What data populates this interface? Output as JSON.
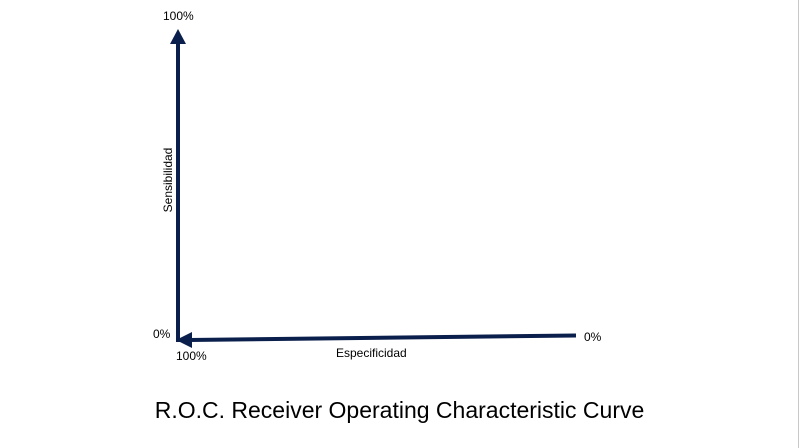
{
  "diagram": {
    "y_axis": {
      "label": "Sensibilidad",
      "top_value": "100%",
      "bottom_value": "0%"
    },
    "x_axis": {
      "label": "Especificidad",
      "left_value": "100%",
      "right_value": "0%"
    },
    "caption": "R.O.C.  Receiver Operating Characteristic Curve",
    "colors": {
      "axis": "#0b1f4d",
      "text": "#000000",
      "background": "#ffffff"
    }
  }
}
